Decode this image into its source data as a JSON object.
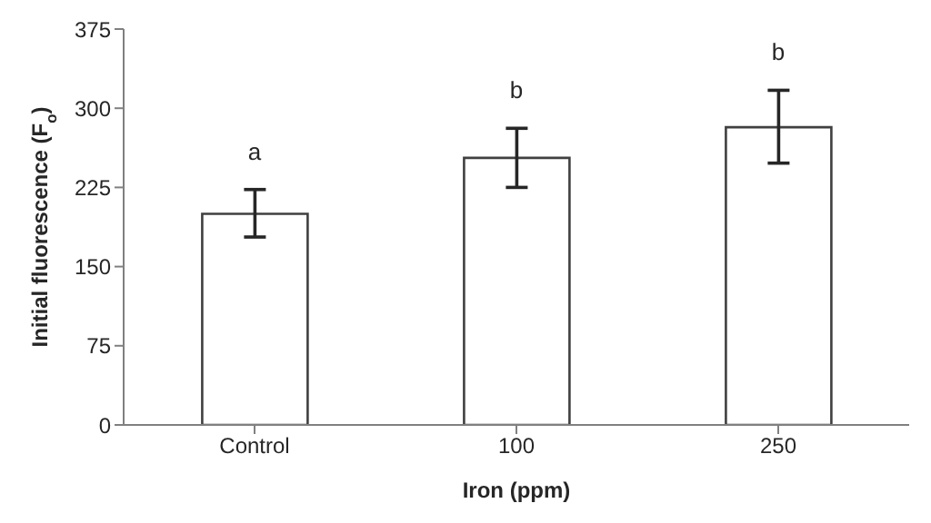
{
  "chart_data": {
    "type": "bar",
    "xlabel": "Iron (ppm)",
    "ylabel": "Initial fluorescence (F$_{o}$)",
    "categories": [
      "Control",
      "100",
      "250"
    ],
    "values": [
      200,
      253,
      282
    ],
    "errors": [
      [
        178,
        223
      ],
      [
        225,
        281
      ],
      [
        248,
        317
      ]
    ],
    "color": "#ffffff",
    "ylim": [
      0,
      375
    ],
    "yticks": [
      0,
      75,
      150,
      225,
      300,
      375
    ],
    "grid": false,
    "legend": false,
    "annotations": [
      "a",
      "b",
      "b"
    ]
  }
}
